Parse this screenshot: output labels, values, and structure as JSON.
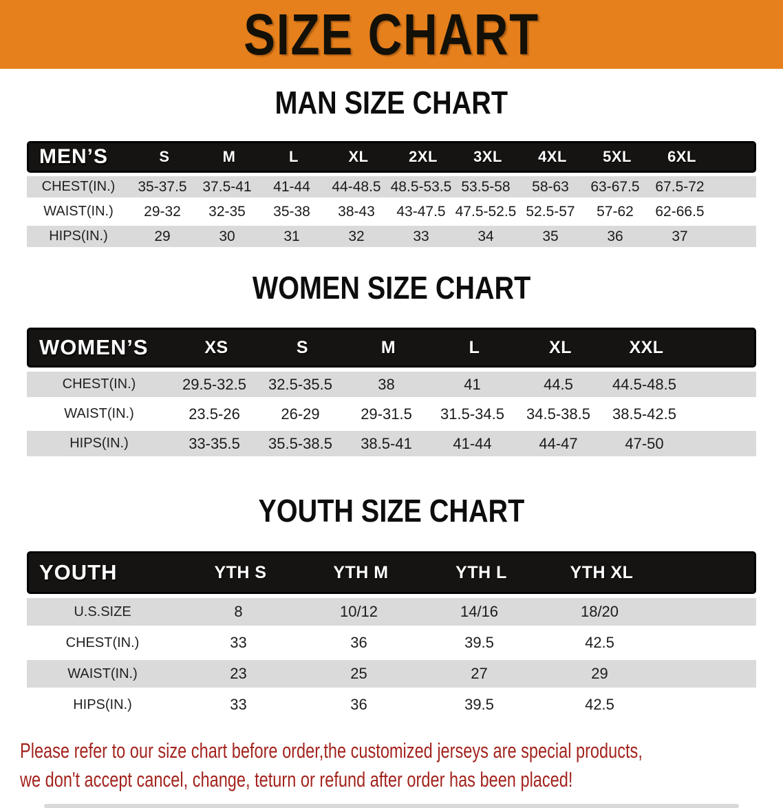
{
  "banner": {
    "title": "SIZE CHART"
  },
  "sections": {
    "men": {
      "title": "MAN SIZE CHART"
    },
    "women": {
      "title": "WOMEN SIZE CHART"
    },
    "youth": {
      "title": "YOUTH SIZE CHART"
    }
  },
  "tables": {
    "men": {
      "label": "MEN’S",
      "sizes": [
        "S",
        "M",
        "L",
        "XL",
        "2XL",
        "3XL",
        "4XL",
        "5XL",
        "6XL"
      ],
      "rows": [
        {
          "label": "CHEST(IN.)",
          "values": [
            "35-37.5",
            "37.5-41",
            "41-44",
            "44-48.5",
            "48.5-53.5",
            "53.5-58",
            "58-63",
            "63-67.5",
            "67.5-72"
          ]
        },
        {
          "label": "WAIST(IN.)",
          "values": [
            "29-32",
            "32-35",
            "35-38",
            "38-43",
            "43-47.5",
            "47.5-52.5",
            "52.5-57",
            "57-62",
            "62-66.5"
          ]
        },
        {
          "label": "HIPS(IN.)",
          "values": [
            "29",
            "30",
            "31",
            "32",
            "33",
            "34",
            "35",
            "36",
            "37"
          ]
        }
      ]
    },
    "women": {
      "label": "WOMEN’S",
      "sizes": [
        "XS",
        "S",
        "M",
        "L",
        "XL",
        "XXL"
      ],
      "rows": [
        {
          "label": "CHEST(IN.)",
          "values": [
            "29.5-32.5",
            "32.5-35.5",
            "38",
            "41",
            "44.5",
            "44.5-48.5"
          ]
        },
        {
          "label": "WAIST(IN.)",
          "values": [
            "23.5-26",
            "26-29",
            "29-31.5",
            "31.5-34.5",
            "34.5-38.5",
            "38.5-42.5"
          ]
        },
        {
          "label": "HIPS(IN.)",
          "values": [
            "33-35.5",
            "35.5-38.5",
            "38.5-41",
            "41-44",
            "44-47",
            "47-50"
          ]
        }
      ]
    },
    "youth": {
      "label": "YOUTH",
      "sizes": [
        "YTH S",
        "YTH M",
        "YTH L",
        "YTH XL"
      ],
      "rows": [
        {
          "label": "U.S.SIZE",
          "values": [
            "8",
            "10/12",
            "14/16",
            "18/20"
          ]
        },
        {
          "label": "CHEST(IN.)",
          "values": [
            "33",
            "36",
            "39.5",
            "42.5"
          ]
        },
        {
          "label": "WAIST(IN.)",
          "values": [
            "23",
            "25",
            "27",
            "29"
          ]
        },
        {
          "label": "HIPS(IN.)",
          "values": [
            "33",
            "36",
            "39.5",
            "42.5"
          ]
        }
      ]
    }
  },
  "footer": {
    "line1": "Please refer to our size chart before order,the customized jerseys are special products,",
    "line2": "we don't accept cancel, change, teturn or refund after order has been placed!"
  },
  "colors": {
    "banner-bg": "#E6801C",
    "bar-bg": "#161412",
    "bar-text": "#FFFFFF",
    "row-gray": "#DADADA",
    "text-dark": "#1E1E1E",
    "note-red": "#A3241E"
  }
}
